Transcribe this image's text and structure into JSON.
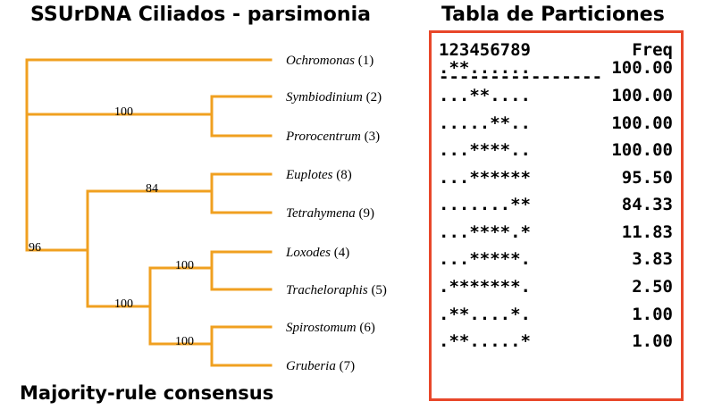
{
  "title_left": "SSUrDNA Ciliados - parsimonia",
  "title_right": "Tabla de Particiones",
  "footer": "Majority-rule consensus",
  "colors": {
    "branch": "#f0a020",
    "panel_border": "#e8472a"
  },
  "tree": {
    "taxa": [
      {
        "name": "Ochromonas",
        "num": "(1)"
      },
      {
        "name": "Symbiodinium",
        "num": "(2)"
      },
      {
        "name": "Prorocentrum",
        "num": "(3)"
      },
      {
        "name": "Euplotes",
        "num": "(8)"
      },
      {
        "name": "Tetrahymena",
        "num": "(9)"
      },
      {
        "name": "Loxodes",
        "num": "(4)"
      },
      {
        "name": "Tracheloraphis",
        "num": "(5)"
      },
      {
        "name": "Spirostomum",
        "num": "(6)"
      },
      {
        "name": "Gruberia",
        "num": "(7)"
      }
    ],
    "supports": [
      "100",
      "84",
      "96",
      "100",
      "100",
      "100"
    ]
  },
  "partitions": {
    "header_left": "123456789",
    "header_right": "Freq",
    "separator": "----------------",
    "rows": [
      {
        "pattern": ".**......",
        "freq": "100.00"
      },
      {
        "pattern": "...**....",
        "freq": "100.00"
      },
      {
        "pattern": ".....**..",
        "freq": "100.00"
      },
      {
        "pattern": "...****..",
        "freq": "100.00"
      },
      {
        "pattern": "...******",
        "freq": "95.50"
      },
      {
        "pattern": ".......**",
        "freq": "84.33"
      },
      {
        "pattern": "...****.*",
        "freq": "11.83"
      },
      {
        "pattern": "...*****.",
        "freq": "3.83"
      },
      {
        "pattern": ".*******.",
        "freq": "2.50"
      },
      {
        "pattern": ".**....*.",
        "freq": "1.00"
      },
      {
        "pattern": ".**.....*",
        "freq": "1.00"
      }
    ]
  }
}
